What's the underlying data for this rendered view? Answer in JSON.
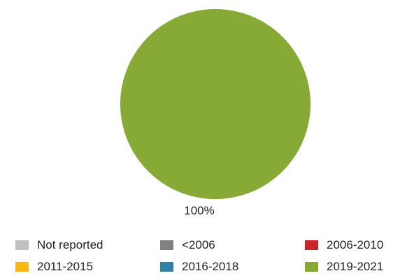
{
  "chart_data": {
    "type": "pie",
    "title": "",
    "categories": [
      "Not reported",
      "<2006",
      "2006-2010",
      "2011-2015",
      "2016-2018",
      "2019-2021"
    ],
    "values": [
      0,
      0,
      0,
      0,
      0,
      100
    ],
    "colors": [
      "#c0c0c0",
      "#808080",
      "#c8262d",
      "#fbb915",
      "#347fa8",
      "#86aa35"
    ],
    "data_labels": [
      "",
      "",
      "",
      "",
      "",
      "100%"
    ],
    "legend_position": "bottom"
  }
}
